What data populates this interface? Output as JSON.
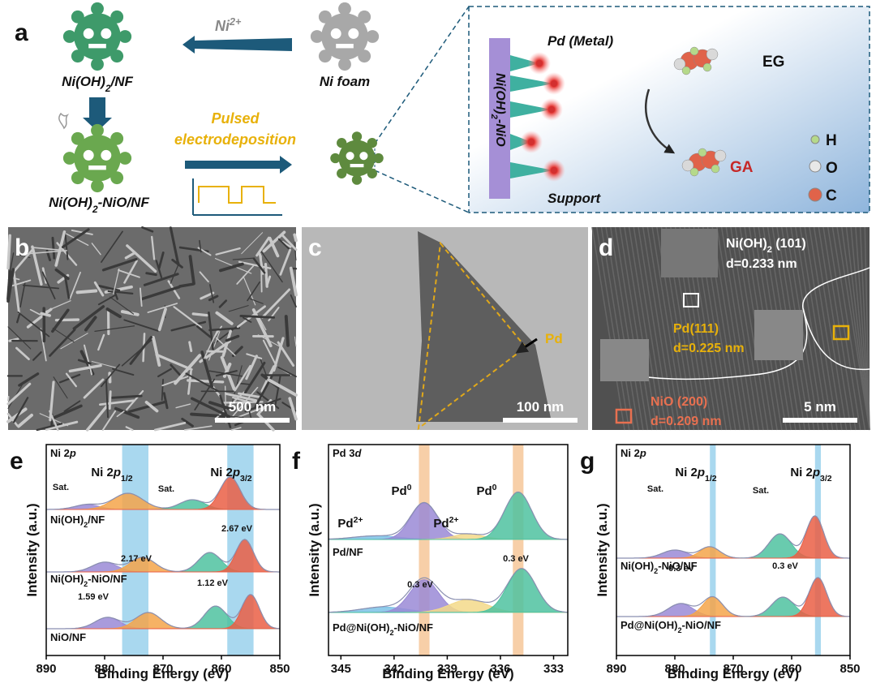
{
  "panel_a": {
    "letter": "a",
    "ion": [
      "Ni",
      "2+"
    ],
    "precursor": [
      "Ni(OH)",
      "2",
      "/NF"
    ],
    "foam": "Ni foam",
    "process": [
      "Pulsed",
      "electrodeposition"
    ],
    "composite": [
      "Ni(OH)",
      "2",
      "-NiO/NF"
    ],
    "metal": "Pd (Metal)",
    "support_layer": [
      "Ni(OH)",
      "2",
      "-NiO"
    ],
    "support": "Support",
    "reactant": "EG",
    "product": "GA",
    "legend": [
      "H",
      "O",
      "C"
    ]
  },
  "panel_b": {
    "letter": "b",
    "scale_bar": "500 nm"
  },
  "panel_c": {
    "letter": "c",
    "label": "Pd",
    "scale_bar": "100 nm"
  },
  "panel_d": {
    "letter": "d",
    "ni_oh2": [
      "Ni(OH)",
      "2",
      " (101)"
    ],
    "ni_oh2_d": "d=0.233 nm",
    "pd": "Pd(111)",
    "pd_d": "d=0.225 nm",
    "nio": "NiO (200)",
    "nio_d": "d=0.209 nm",
    "scale_bar": "5 nm"
  },
  "chart_data": [
    {
      "type": "xps",
      "letter": "e",
      "core_level": [
        "Ni 2",
        "p"
      ],
      "xlabel": "Binding Energy (eV)",
      "ylabel": "Intensity (a.u.)",
      "xlim": [
        890,
        850
      ],
      "xticks": [
        890,
        880,
        870,
        860,
        850
      ],
      "highlight_color": "#a9d8ef",
      "highlights": [
        [
          877,
          872.5
        ],
        [
          859,
          854.5
        ]
      ],
      "peak_labels": [
        [
          "Ni 2",
          "p",
          "1/2"
        ],
        [
          "Ni 2",
          "p",
          "3/2"
        ]
      ],
      "spectra": [
        {
          "name": [
            "Ni(OH)",
            "2",
            "/NF"
          ],
          "peaks": [
            {
              "center": 883,
              "height": 0.15,
              "fwhm": 5,
              "color": "#9a8ad6"
            },
            {
              "center": 876,
              "height": 0.5,
              "fwhm": 6,
              "color": "#f5a54a"
            },
            {
              "center": 865,
              "height": 0.3,
              "fwhm": 5,
              "color": "#4fc2a0"
            },
            {
              "center": 858.5,
              "height": 1,
              "fwhm": 4,
              "color": "#ea5f45"
            }
          ]
        },
        {
          "name": [
            "Ni(OH)",
            "2",
            "-NiO/NF"
          ],
          "peaks": [
            {
              "center": 880,
              "height": 0.3,
              "fwhm": 5,
              "color": "#9a8ad6"
            },
            {
              "center": 873.5,
              "height": 0.45,
              "fwhm": 5,
              "color": "#f5a54a"
            },
            {
              "center": 862,
              "height": 0.6,
              "fwhm": 4.5,
              "color": "#4fc2a0"
            },
            {
              "center": 856,
              "height": 1,
              "fwhm": 3.5,
              "color": "#ea5f45"
            }
          ]
        },
        {
          "name": "NiO/NF",
          "peaks": [
            {
              "center": 879.5,
              "height": 0.35,
              "fwhm": 5,
              "color": "#9a8ad6"
            },
            {
              "center": 872.5,
              "height": 0.5,
              "fwhm": 5,
              "color": "#f5a54a"
            },
            {
              "center": 861,
              "height": 0.7,
              "fwhm": 4.5,
              "color": "#4fc2a0"
            },
            {
              "center": 855,
              "height": 1.05,
              "fwhm": 3.5,
              "color": "#ea5f45"
            }
          ]
        }
      ],
      "annotations": [
        "Sat.",
        "Sat.",
        "2.17 eV",
        "2.67 eV",
        "1.12 eV",
        "1.59 eV"
      ]
    },
    {
      "type": "xps",
      "letter": "f",
      "core_level": [
        "Pd 3",
        "d"
      ],
      "xlabel": "Binding Energy (eV)",
      "ylabel": "Intensity (a.u.)",
      "xlim": [
        345.7,
        332.2
      ],
      "xticks": [
        345,
        342,
        339,
        336,
        333
      ],
      "highlight_color": "#f7cfa8",
      "highlights": [
        [
          340.6,
          340.0
        ],
        [
          335.3,
          334.7
        ]
      ],
      "peak_labels": [
        [
          "Pd",
          "0"
        ],
        [
          "Pd",
          "0"
        ],
        [
          "Pd",
          "2+"
        ],
        [
          "Pd",
          "2+"
        ]
      ],
      "spectra": [
        {
          "name": "Pd/NF",
          "peaks": [
            {
              "center": 343,
              "height": 0.1,
              "fwhm": 3,
              "color": "#7cc2e6"
            },
            {
              "center": 340.3,
              "height": 1,
              "fwhm": 1.8,
              "color": "#9a8ad6"
            },
            {
              "center": 337.8,
              "height": 0.15,
              "fwhm": 2,
              "color": "#f3d98a"
            },
            {
              "center": 335,
              "height": 1.3,
              "fwhm": 1.8,
              "color": "#4fc2a0"
            }
          ]
        },
        {
          "name": [
            "Pd@Ni(OH)",
            "2",
            "-NiO/NF"
          ],
          "peaks": [
            {
              "center": 342.6,
              "height": 0.15,
              "fwhm": 3,
              "color": "#7cc2e6"
            },
            {
              "center": 340.3,
              "height": 0.9,
              "fwhm": 1.9,
              "color": "#9a8ad6"
            },
            {
              "center": 337.8,
              "height": 0.35,
              "fwhm": 2.5,
              "color": "#f3d98a"
            },
            {
              "center": 334.8,
              "height": 1.2,
              "fwhm": 1.9,
              "color": "#4fc2a0"
            }
          ]
        }
      ],
      "annotations": [
        "0.3 eV",
        "0.3 eV"
      ]
    },
    {
      "type": "xps",
      "letter": "g",
      "core_level": [
        "Ni 2",
        "p"
      ],
      "xlabel": "Binding Energy (eV)",
      "ylabel": "Intensity (a.u.)",
      "xlim": [
        890,
        850
      ],
      "xticks": [
        890,
        880,
        870,
        860,
        850
      ],
      "highlight_color": "#a9d8ef",
      "highlights": [
        [
          874,
          873
        ],
        [
          856,
          855
        ]
      ],
      "peak_labels": [
        [
          "Ni 2",
          "p",
          "1/2"
        ],
        [
          "Ni 2",
          "p",
          "3/2"
        ]
      ],
      "spectra": [
        {
          "name": [
            "Ni(OH)",
            "2",
            "-NiO/NF"
          ],
          "peaks": [
            {
              "center": 880,
              "height": 0.25,
              "fwhm": 5,
              "color": "#9a8ad6"
            },
            {
              "center": 874,
              "height": 0.35,
              "fwhm": 4,
              "color": "#f5a54a"
            },
            {
              "center": 862,
              "height": 0.75,
              "fwhm": 4.5,
              "color": "#4fc2a0"
            },
            {
              "center": 856,
              "height": 1.3,
              "fwhm": 3.5,
              "color": "#ea5f45"
            }
          ]
        },
        {
          "name": [
            "Pd@Ni(OH)",
            "2",
            "-NiO/NF"
          ],
          "peaks": [
            {
              "center": 879,
              "height": 0.4,
              "fwhm": 5,
              "color": "#9a8ad6"
            },
            {
              "center": 873.5,
              "height": 0.6,
              "fwhm": 4,
              "color": "#f5a54a"
            },
            {
              "center": 861.5,
              "height": 0.6,
              "fwhm": 4.5,
              "color": "#4fc2a0"
            },
            {
              "center": 855.5,
              "height": 1.2,
              "fwhm": 3.5,
              "color": "#ea5f45"
            }
          ]
        }
      ],
      "annotations": [
        "Sat.",
        "Sat.",
        "0.3 eV",
        "0.3 eV"
      ]
    }
  ]
}
